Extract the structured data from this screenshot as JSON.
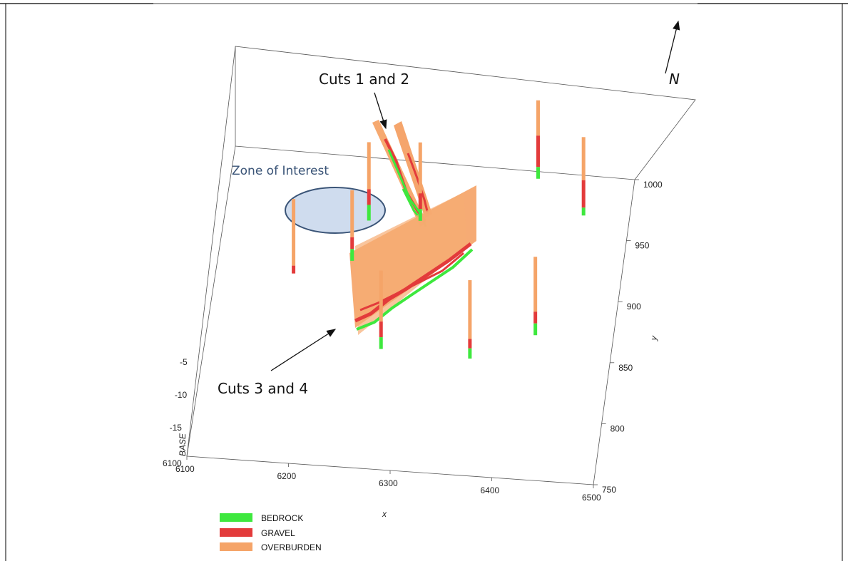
{
  "chart_data": {
    "type": "scatter",
    "title": "",
    "xlabel": "x",
    "ylabel": "y",
    "zlabel": "BASE",
    "x_ticks": [
      6100,
      6200,
      6300,
      6400,
      6500
    ],
    "y_ticks": [
      750,
      800,
      850,
      900,
      950,
      1000
    ],
    "z_ticks": [
      -5,
      -10,
      -15
    ],
    "xlim": [
      6100,
      6500
    ],
    "ylim": [
      750,
      1000
    ],
    "colors": {
      "BEDROCK": "#3ee83e",
      "GRAVEL": "#e33b3b",
      "OVERBURDEN": "#f5a468"
    },
    "legend": {
      "placement": "bottom-left",
      "entries": [
        "BEDROCK",
        "GRAVEL",
        "OVERBURDEN"
      ]
    },
    "annotations": {
      "cuts_1_2": "Cuts 1 and 2",
      "cuts_3_4": "Cuts 3 and 4",
      "zone": "Zone of Interest",
      "north": "N"
    },
    "boreholes": [
      {
        "x": 6175,
        "y": 920,
        "overburden": 0.85,
        "gravel": 0.1,
        "bedrock": 0.0
      },
      {
        "x": 6230,
        "y": 935,
        "overburden": 0.6,
        "gravel": 0.15,
        "bedrock": 0.15
      },
      {
        "x": 6240,
        "y": 972,
        "overburden": 0.6,
        "gravel": 0.2,
        "bedrock": 0.2
      },
      {
        "x": 6290,
        "y": 975,
        "overburden": 0.65,
        "gravel": 0.2,
        "bedrock": 0.15
      },
      {
        "x": 6272,
        "y": 858,
        "overburden": 0.65,
        "gravel": 0.2,
        "bedrock": 0.15
      },
      {
        "x": 6360,
        "y": 855,
        "overburden": 0.75,
        "gravel": 0.12,
        "bedrock": 0.13
      },
      {
        "x": 6420,
        "y": 880,
        "overburden": 0.7,
        "gravel": 0.15,
        "bedrock": 0.15
      },
      {
        "x": 6398,
        "y": 1020,
        "overburden": 0.45,
        "gravel": 0.4,
        "bedrock": 0.15
      },
      {
        "x": 6448,
        "y": 990,
        "overburden": 0.55,
        "gravel": 0.35,
        "bedrock": 0.1
      }
    ]
  }
}
